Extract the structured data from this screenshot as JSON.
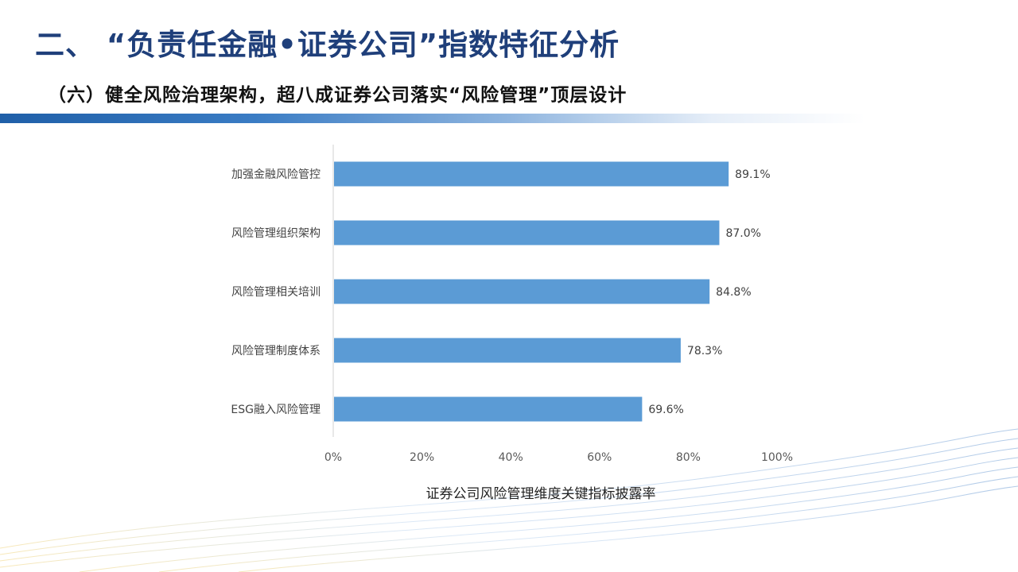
{
  "header": {
    "title": "二、 “负责任金融•证券公司”指数特征分析",
    "subtitle": "（六）健全风险治理架构，超八成证券公司落实“风险管理”顶层设计"
  },
  "colors": {
    "bar": "#5b9bd5",
    "title": "#1f3f7a",
    "band": "#1f5fa8"
  },
  "chart_data": {
    "type": "bar",
    "orientation": "horizontal",
    "categories": [
      "加强金融风险管控",
      "风险管理组织架构",
      "风险管理相关培训",
      "风险管理制度体系",
      "ESG融入风险管理"
    ],
    "values": [
      89.1,
      87.0,
      84.8,
      78.3,
      69.6
    ],
    "value_labels": [
      "89.1%",
      "87.0%",
      "84.8%",
      "78.3%",
      "69.6%"
    ],
    "xlim": [
      0,
      100
    ],
    "x_ticks": [
      "0%",
      "20%",
      "40%",
      "60%",
      "80%",
      "100%"
    ],
    "xlabel": "证券公司风险管理维度关键指标披露率",
    "title": "",
    "grid": false,
    "legend": "none"
  }
}
